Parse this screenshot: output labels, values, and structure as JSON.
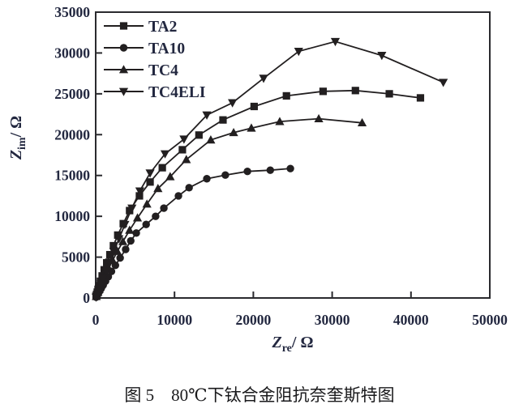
{
  "figure": {
    "caption": "图 5　80℃下钛合金阻抗奈奎斯特图"
  },
  "chart_data": {
    "type": "scatter",
    "title": "",
    "xlabel": {
      "var": "Z",
      "sub": "re",
      "unit": "/ Ω"
    },
    "ylabel": {
      "var": "Z",
      "sub": "im",
      "unit": "/ Ω"
    },
    "xlim": [
      0,
      50000
    ],
    "ylim": [
      0,
      35000
    ],
    "xticks": [
      0,
      10000,
      20000,
      30000,
      40000,
      50000
    ],
    "yticks": [
      0,
      5000,
      10000,
      15000,
      20000,
      25000,
      30000,
      35000
    ],
    "grid": false,
    "legend_position": "upper-left-inside",
    "line_color": "#221f20",
    "tick_label_color": "#232840",
    "frame_color": "#2a2a2e",
    "series": [
      {
        "name": "TA2",
        "marker": "square",
        "points": [
          [
            60,
            200
          ],
          [
            120,
            420
          ],
          [
            200,
            700
          ],
          [
            300,
            1050
          ],
          [
            430,
            1500
          ],
          [
            600,
            2050
          ],
          [
            820,
            2700
          ],
          [
            1080,
            3450
          ],
          [
            1400,
            4300
          ],
          [
            1800,
            5300
          ],
          [
            2250,
            6400
          ],
          [
            2800,
            7700
          ],
          [
            3500,
            9100
          ],
          [
            4300,
            10700
          ],
          [
            5550,
            12500
          ],
          [
            6900,
            14200
          ],
          [
            8450,
            15950
          ],
          [
            11000,
            18150
          ],
          [
            13100,
            19950
          ],
          [
            16150,
            21800
          ],
          [
            20100,
            23450
          ],
          [
            24200,
            24750
          ],
          [
            28850,
            25300
          ],
          [
            32950,
            25400
          ],
          [
            37250,
            25000
          ],
          [
            41200,
            24500
          ]
        ]
      },
      {
        "name": "TA10",
        "marker": "circle",
        "points": [
          [
            60,
            100
          ],
          [
            120,
            200
          ],
          [
            210,
            350
          ],
          [
            340,
            560
          ],
          [
            500,
            830
          ],
          [
            700,
            1160
          ],
          [
            950,
            1570
          ],
          [
            1250,
            2050
          ],
          [
            1600,
            2600
          ],
          [
            2000,
            3250
          ],
          [
            2500,
            4000
          ],
          [
            3100,
            4900
          ],
          [
            3800,
            5950
          ],
          [
            4450,
            7000
          ],
          [
            5150,
            7950
          ],
          [
            6400,
            9000
          ],
          [
            7600,
            10000
          ],
          [
            8650,
            11000
          ],
          [
            10500,
            12500
          ],
          [
            11850,
            13500
          ],
          [
            14100,
            14600
          ],
          [
            16450,
            15050
          ],
          [
            19250,
            15500
          ],
          [
            22150,
            15650
          ],
          [
            24700,
            15850
          ]
        ]
      },
      {
        "name": "TC4",
        "marker": "triangle-up",
        "points": [
          [
            80,
            190
          ],
          [
            160,
            390
          ],
          [
            280,
            680
          ],
          [
            440,
            1060
          ],
          [
            650,
            1550
          ],
          [
            920,
            2150
          ],
          [
            1250,
            2850
          ],
          [
            1650,
            3650
          ],
          [
            2150,
            4600
          ],
          [
            2750,
            5700
          ],
          [
            3450,
            6900
          ],
          [
            4300,
            8300
          ],
          [
            5300,
            9800
          ],
          [
            6500,
            11500
          ],
          [
            7900,
            13400
          ],
          [
            9450,
            14850
          ],
          [
            11500,
            16950
          ],
          [
            14600,
            19350
          ],
          [
            17500,
            20250
          ],
          [
            19750,
            20800
          ],
          [
            23350,
            21600
          ],
          [
            28300,
            21950
          ],
          [
            33800,
            21450
          ]
        ]
      },
      {
        "name": "TC4ELI",
        "marker": "triangle-down",
        "points": [
          [
            50,
            100
          ],
          [
            100,
            230
          ],
          [
            175,
            420
          ],
          [
            290,
            720
          ],
          [
            450,
            1150
          ],
          [
            670,
            1700
          ],
          [
            950,
            2400
          ],
          [
            1300,
            3300
          ],
          [
            1750,
            4400
          ],
          [
            2300,
            5700
          ],
          [
            2950,
            7250
          ],
          [
            3700,
            9000
          ],
          [
            4600,
            11000
          ],
          [
            5600,
            13100
          ],
          [
            6900,
            15300
          ],
          [
            8800,
            17650
          ],
          [
            11200,
            19450
          ],
          [
            14100,
            22400
          ],
          [
            17350,
            23900
          ],
          [
            21300,
            26900
          ],
          [
            25750,
            30200
          ],
          [
            30400,
            31400
          ],
          [
            36300,
            29700
          ],
          [
            44100,
            26400
          ]
        ]
      }
    ]
  }
}
